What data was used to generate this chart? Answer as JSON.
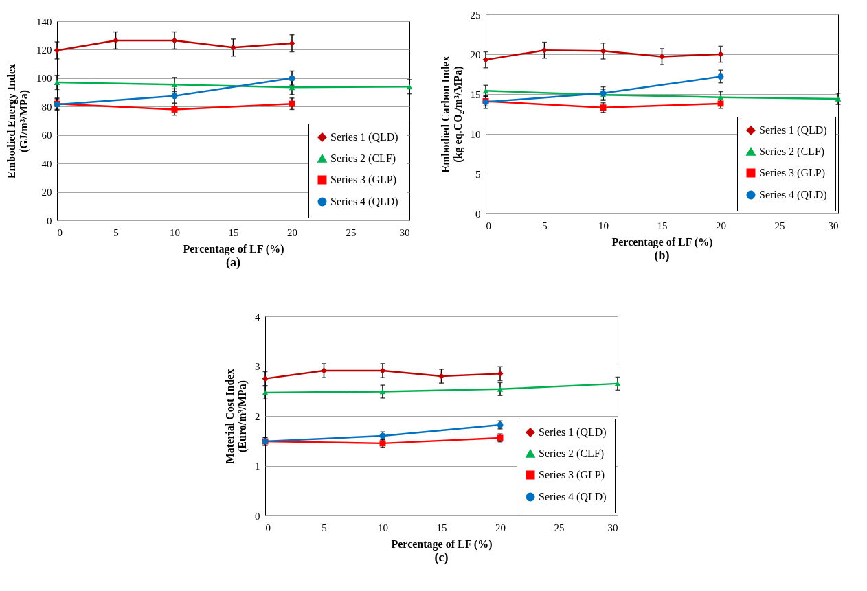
{
  "chart_data": [
    {
      "type": "line",
      "xlabel": "Percentage of LF (%)",
      "ylabel": "Embodied Energy Index (GJ/m³/MPa)",
      "annotations": [
        "(a)"
      ],
      "xlim": [
        0,
        30
      ],
      "xticks": [
        0,
        5,
        10,
        15,
        20,
        25,
        30
      ],
      "ylim": [
        0,
        140
      ],
      "yticks": [
        0,
        20,
        40,
        60,
        80,
        100,
        120,
        140
      ],
      "grid": "y",
      "legend": "bottom right",
      "series": [
        {
          "name": "Series 1 (QLD)",
          "color": "#c00000",
          "marker": "diamond",
          "x": [
            0,
            5,
            10,
            15,
            20
          ],
          "values": [
            119.5,
            126.5,
            126.5,
            121.5,
            124.5
          ],
          "errors": [
            6,
            6,
            6,
            6,
            6
          ]
        },
        {
          "name": "Series 2 (CLF)",
          "color": "#00b050",
          "marker": "triangle",
          "x": [
            0,
            10,
            20,
            30
          ],
          "values": [
            97,
            95.5,
            93.5,
            94
          ],
          "errors": [
            5,
            5,
            5,
            5
          ]
        },
        {
          "name": "Series 3 (GLP)",
          "color": "#ff0000",
          "marker": "square",
          "x": [
            0,
            10,
            20
          ],
          "values": [
            82,
            78,
            82
          ],
          "errors": [
            4,
            4,
            4
          ]
        },
        {
          "name": "Series 4 (QLD)",
          "color": "#0070c0",
          "marker": "circle",
          "x": [
            0,
            10,
            20
          ],
          "values": [
            81.5,
            87.5,
            100
          ],
          "errors": [
            4,
            5,
            5
          ]
        }
      ]
    },
    {
      "type": "line",
      "xlabel": "Percentage of LF (%)",
      "ylabel": "Embodied Carbon Index (kg eq.CO₂/m³/MPa)",
      "annotations": [
        "(b)"
      ],
      "xlim": [
        0,
        30
      ],
      "xticks": [
        0,
        5,
        10,
        15,
        20,
        25,
        30
      ],
      "ylim": [
        0,
        25
      ],
      "yticks": [
        0,
        5,
        10,
        15,
        20,
        25
      ],
      "grid": "y",
      "legend": "bottom right",
      "series": [
        {
          "name": "Series 1 (QLD)",
          "color": "#c00000",
          "marker": "diamond",
          "x": [
            0,
            5,
            10,
            15,
            20
          ],
          "values": [
            19.3,
            20.5,
            20.4,
            19.7,
            20.0
          ],
          "errors": [
            1,
            1,
            1,
            1,
            1
          ]
        },
        {
          "name": "Series 2 (CLF)",
          "color": "#00b050",
          "marker": "triangle",
          "x": [
            0,
            10,
            20,
            30
          ],
          "values": [
            15.4,
            14.9,
            14.6,
            14.4
          ],
          "errors": [
            0.7,
            0.7,
            0.7,
            0.7
          ]
        },
        {
          "name": "Series 3 (GLP)",
          "color": "#ff0000",
          "marker": "square",
          "x": [
            0,
            10,
            20
          ],
          "values": [
            14.1,
            13.3,
            13.8
          ],
          "errors": [
            0.6,
            0.6,
            0.6
          ]
        },
        {
          "name": "Series 4 (QLD)",
          "color": "#0070c0",
          "marker": "circle",
          "x": [
            0,
            10,
            20
          ],
          "values": [
            14.0,
            15.1,
            17.2
          ],
          "errors": [
            0.8,
            0.8,
            0.8
          ]
        }
      ]
    },
    {
      "type": "line",
      "xlabel": "Percentage of LF (%)",
      "ylabel": "Material Cost Index (Euro/m³/MPa)",
      "annotations": [
        "(c)"
      ],
      "xlim": [
        0,
        30
      ],
      "xticks": [
        0,
        5,
        10,
        15,
        20,
        25,
        30
      ],
      "ylim": [
        0,
        4
      ],
      "yticks": [
        0,
        1,
        2,
        3,
        4
      ],
      "grid": "y",
      "legend": "bottom right",
      "series": [
        {
          "name": "Series 1 (QLD)",
          "color": "#c00000",
          "marker": "diamond",
          "x": [
            0,
            5,
            10,
            15,
            20
          ],
          "values": [
            2.75,
            2.91,
            2.91,
            2.8,
            2.85
          ],
          "errors": [
            0.14,
            0.14,
            0.14,
            0.14,
            0.14
          ]
        },
        {
          "name": "Series 2 (CLF)",
          "color": "#00b050",
          "marker": "triangle",
          "x": [
            0,
            10,
            20,
            30
          ],
          "values": [
            2.47,
            2.49,
            2.54,
            2.65
          ],
          "errors": [
            0.13,
            0.13,
            0.13,
            0.13
          ]
        },
        {
          "name": "Series 3 (GLP)",
          "color": "#ff0000",
          "marker": "square",
          "x": [
            0,
            10,
            20
          ],
          "values": [
            1.49,
            1.45,
            1.56
          ],
          "errors": [
            0.08,
            0.08,
            0.08
          ]
        },
        {
          "name": "Series 4 (QLD)",
          "color": "#0070c0",
          "marker": "circle",
          "x": [
            0,
            10,
            20
          ],
          "values": [
            1.49,
            1.6,
            1.82
          ],
          "errors": [
            0.08,
            0.08,
            0.08
          ]
        }
      ]
    }
  ]
}
